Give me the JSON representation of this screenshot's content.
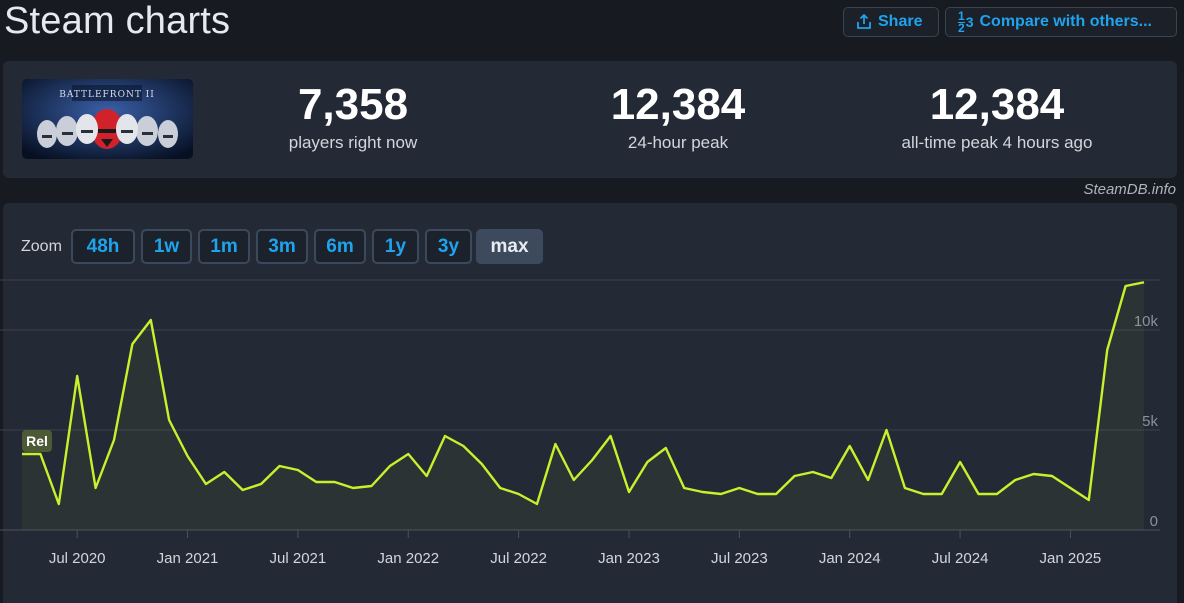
{
  "header": {
    "title": "Steam charts",
    "share_label": "Share",
    "compare_label": "Compare with others...",
    "compare_icon_top": "1",
    "compare_icon_bottom": "2",
    "compare_icon_right": "3"
  },
  "stats": [
    {
      "value": "7,358",
      "label": "players right now"
    },
    {
      "value": "12,384",
      "label": "24-hour peak"
    },
    {
      "value": "12,384",
      "label": "all-time peak 4 hours ago"
    }
  ],
  "credit": "SteamDB.info",
  "zoom": {
    "label": "Zoom",
    "options": [
      "48h",
      "1w",
      "1m",
      "3m",
      "6m",
      "1y",
      "3y",
      "max"
    ],
    "active": "max"
  },
  "colors": {
    "line": "#c6f22c",
    "badge_bg": "#4c5a36",
    "badge_text": "#ffffff"
  },
  "chart_data": {
    "type": "line",
    "title": "",
    "xlabel": "",
    "ylabel": "",
    "ylim": [
      0,
      12500
    ],
    "y_ticks": [
      {
        "value": 0,
        "label": "0"
      },
      {
        "value": 5000,
        "label": "5k"
      },
      {
        "value": 10000,
        "label": "10k"
      }
    ],
    "x_ticks": [
      "Jul 2020",
      "Jan 2021",
      "Jul 2021",
      "Jan 2022",
      "Jul 2022",
      "Jan 2023",
      "Jul 2023",
      "Jan 2024",
      "Jul 2024",
      "Jan 2025"
    ],
    "annotation": {
      "label": "Rel",
      "x": "2020-04"
    },
    "series": [
      {
        "x": [
          "2020-04",
          "2020-05",
          "2020-06",
          "2020-07",
          "2020-08",
          "2020-09",
          "2020-10",
          "2020-11",
          "2020-12",
          "2021-01",
          "2021-02",
          "2021-03",
          "2021-04",
          "2021-05",
          "2021-06",
          "2021-07",
          "2021-08",
          "2021-09",
          "2021-10",
          "2021-11",
          "2021-12",
          "2022-01",
          "2022-02",
          "2022-03",
          "2022-04",
          "2022-05",
          "2022-06",
          "2022-07",
          "2022-08",
          "2022-09",
          "2022-10",
          "2022-11",
          "2022-12",
          "2023-01",
          "2023-02",
          "2023-03",
          "2023-04",
          "2023-05",
          "2023-06",
          "2023-07",
          "2023-08",
          "2023-09",
          "2023-10",
          "2023-11",
          "2023-12",
          "2024-01",
          "2024-02",
          "2024-03",
          "2024-04",
          "2024-05",
          "2024-06",
          "2024-07",
          "2024-08",
          "2024-09",
          "2024-10",
          "2024-11",
          "2024-12",
          "2025-01",
          "2025-02",
          "2025-03",
          "2025-04",
          "2025-05"
        ],
        "values": [
          3800,
          3800,
          1300,
          7700,
          2100,
          4500,
          9300,
          10500,
          5500,
          3700,
          2300,
          2900,
          2000,
          2300,
          3200,
          3000,
          2400,
          2400,
          2100,
          2200,
          3200,
          3800,
          2700,
          4700,
          4200,
          3300,
          2100,
          1800,
          1300,
          4300,
          2500,
          3500,
          4700,
          1900,
          3400,
          4100,
          2100,
          1900,
          1800,
          2100,
          1800,
          1800,
          2700,
          2900,
          2600,
          4200,
          2500,
          5000,
          2100,
          1800,
          1800,
          3400,
          1800,
          1800,
          2500,
          2800,
          2700,
          2100,
          1500,
          9000,
          12200,
          12384
        ]
      }
    ]
  }
}
